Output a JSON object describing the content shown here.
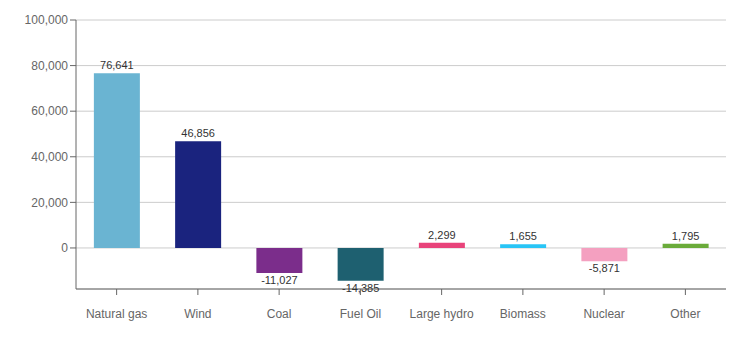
{
  "chart_data": {
    "type": "bar",
    "categories": [
      "Natural gas",
      "Wind",
      "Coal",
      "Fuel Oil",
      "Large hydro",
      "Biomass",
      "Nuclear",
      "Other"
    ],
    "values": [
      76641,
      46856,
      -11027,
      -14385,
      2299,
      1655,
      -5871,
      1795
    ],
    "value_labels": [
      "76,641",
      "46,856",
      "-11,027",
      "-14,385",
      "2,299",
      "1,655",
      "-5,871",
      "1,795"
    ],
    "colors": [
      "#6ab4d2",
      "#1a237e",
      "#7b2d8b",
      "#1e6070",
      "#e8437a",
      "#29c5f6",
      "#f4a0c0",
      "#6aab3a"
    ],
    "ylim": [
      -18000,
      100000
    ],
    "yticks": [
      0,
      {
        "value": 20000,
        "label": "20,000"
      },
      {
        "value": 40000,
        "label": "40,000"
      },
      {
        "value": 60000,
        "label": "60,000"
      },
      {
        "value": 80000,
        "label": "80,000"
      },
      {
        "value": 100000,
        "label": "100,000"
      }
    ],
    "grid": true,
    "data_labels": true
  }
}
